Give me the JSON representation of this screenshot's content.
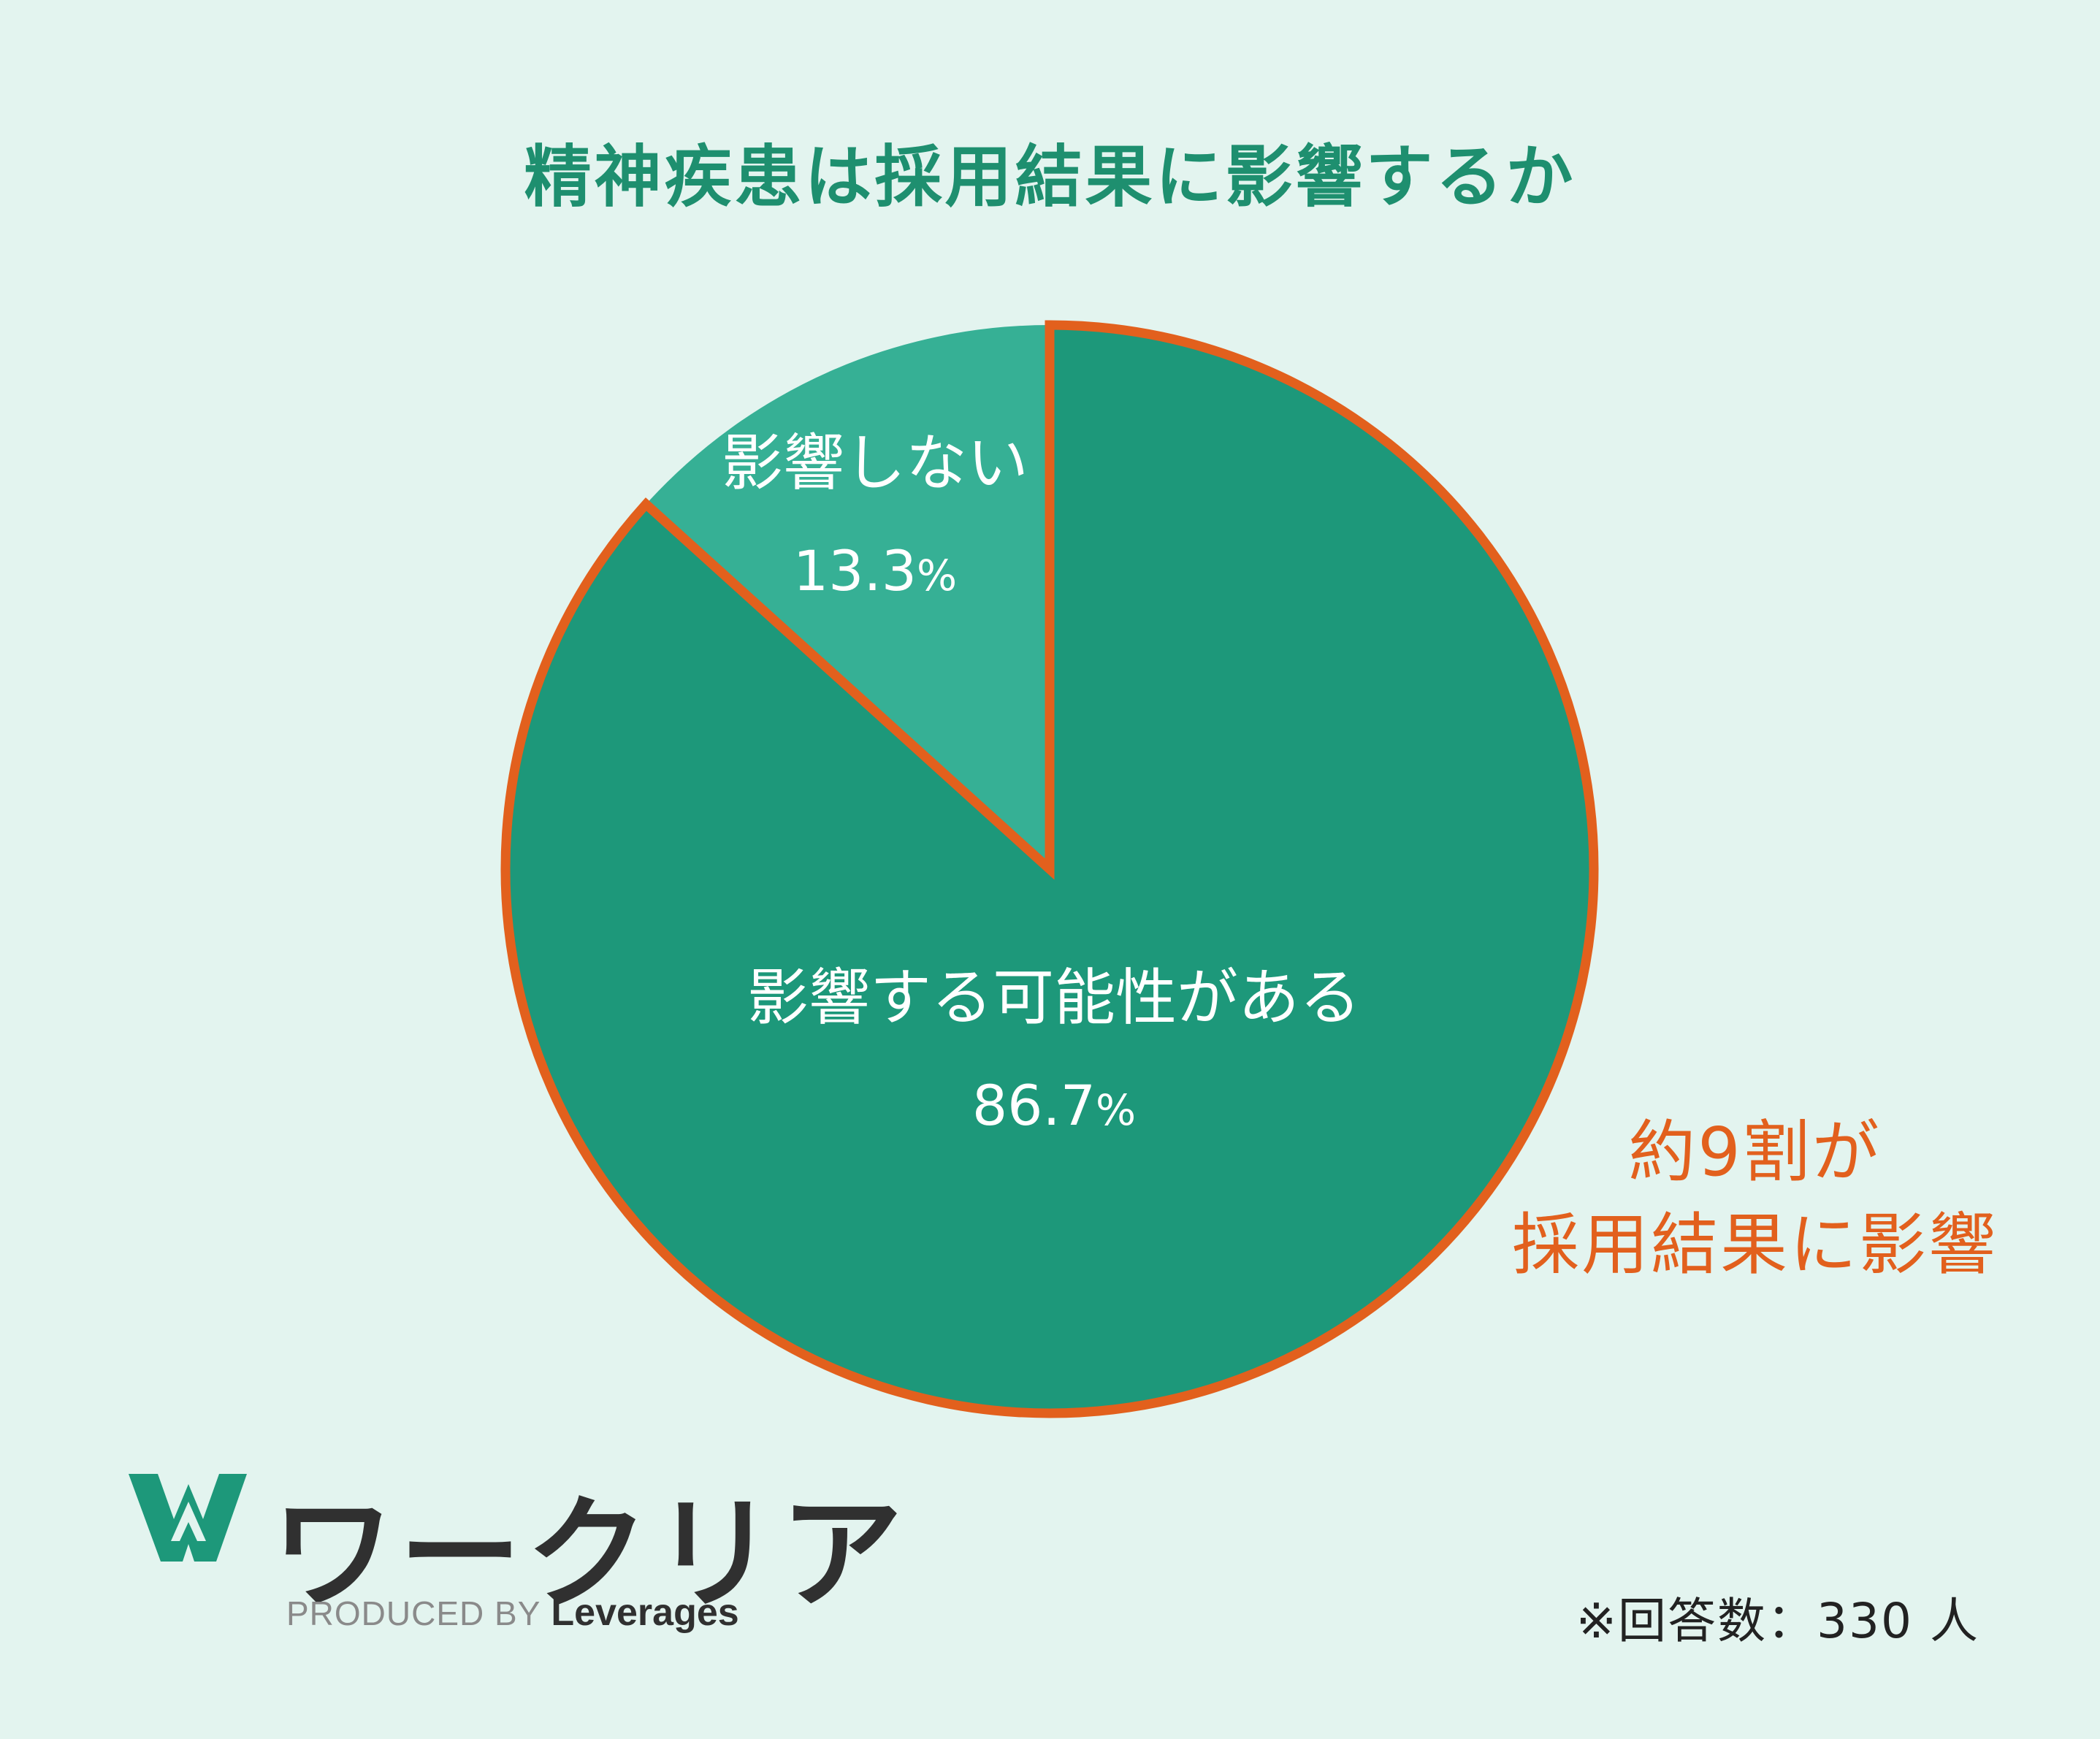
{
  "title": "精神疾患は採用結果に影響するか",
  "chart_data": {
    "type": "pie",
    "title": "精神疾患は採用結果に影響するか",
    "slices": [
      {
        "label": "影響する可能性がある",
        "value": 86.7,
        "display": "86.7",
        "color": "#1d987a",
        "highlighted": true
      },
      {
        "label": "影響しない",
        "value": 13.3,
        "display": "13.3",
        "color": "#36b095",
        "highlighted": false
      }
    ],
    "unit": "%",
    "start": "12 o'clock",
    "direction": "clockwise",
    "highlight_color": "#e2601d",
    "label_color": "#ffffff"
  },
  "callout": {
    "line1": "約9割が",
    "line2": "採用結果に影響"
  },
  "footnote": "※回答数：330 人",
  "logo": {
    "name": "ワークリア",
    "produced_by": "PRODUCED BY",
    "company": "Leverages",
    "mark_color": "#1d987a"
  },
  "colors": {
    "background": "#e3f4ef",
    "title": "#1e8f6f",
    "accent": "#e2601d"
  }
}
